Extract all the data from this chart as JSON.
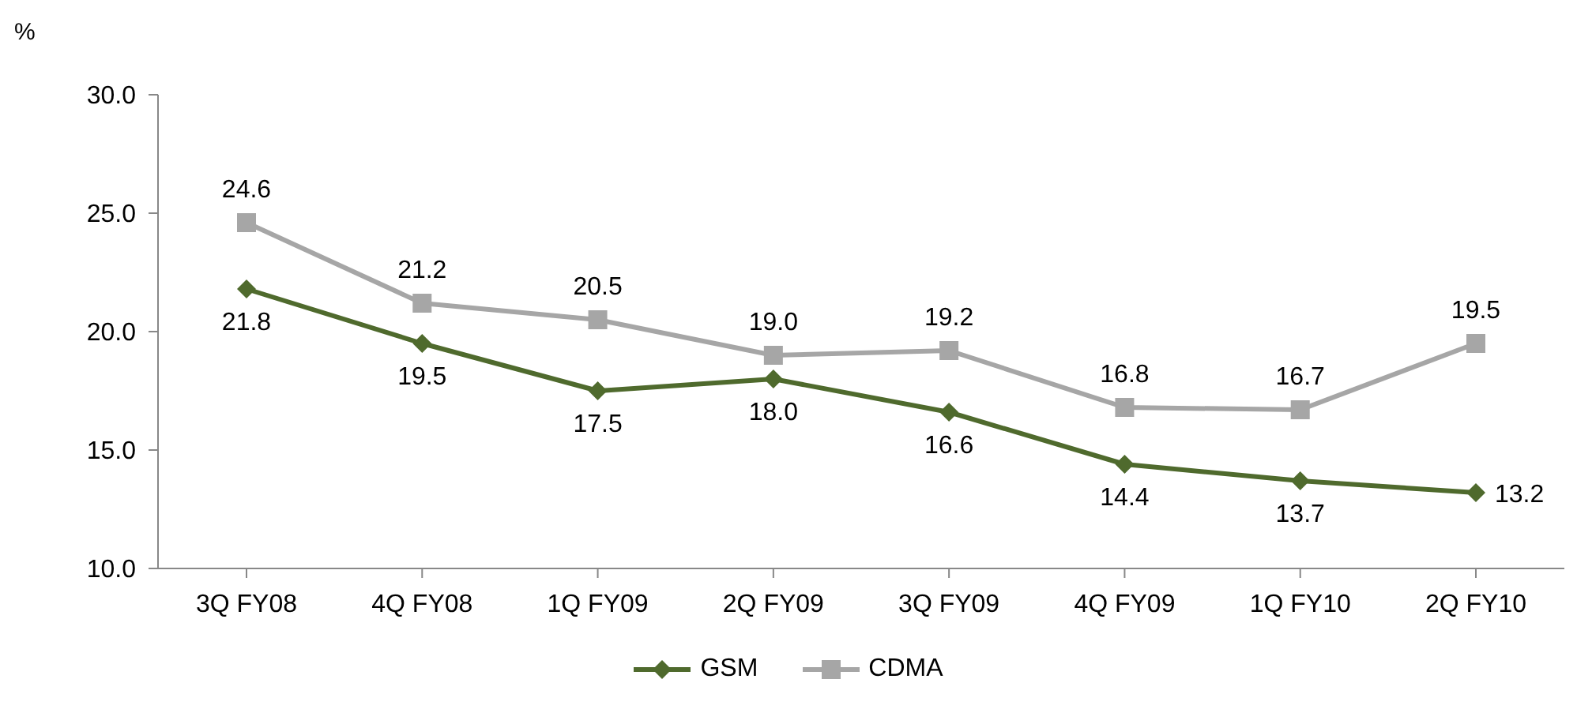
{
  "chart_data": {
    "type": "line",
    "ylabel": "%",
    "categories": [
      "3Q FY08",
      "4Q FY08",
      "1Q FY09",
      "2Q FY09",
      "3Q FY09",
      "4Q FY09",
      "1Q FY10",
      "2Q FY10"
    ],
    "series": [
      {
        "name": "GSM",
        "color": "#4f6a2d",
        "marker": "diamond",
        "values": [
          21.8,
          19.5,
          17.5,
          18.0,
          16.6,
          14.4,
          13.7,
          13.2
        ],
        "value_labels": [
          "21.8",
          "19.5",
          "17.5",
          "18.0",
          "16.6",
          "14.4",
          "13.7",
          "13.2"
        ]
      },
      {
        "name": "CDMA",
        "color": "#a6a6a6",
        "marker": "square",
        "values": [
          24.6,
          21.2,
          20.5,
          19.0,
          19.2,
          16.8,
          16.7,
          19.5
        ],
        "value_labels": [
          "24.6",
          "21.2",
          "20.5",
          "19.0",
          "19.2",
          "16.8",
          "16.7",
          "19.5"
        ]
      }
    ],
    "ylim": [
      10,
      30
    ],
    "yticks": [
      {
        "value": 10,
        "label": "10.0"
      },
      {
        "value": 15,
        "label": "15.0"
      },
      {
        "value": 20,
        "label": "20.0"
      },
      {
        "value": 25,
        "label": "25.0"
      },
      {
        "value": 30,
        "label": "30.0"
      }
    ],
    "grid": false,
    "legend": "bottom",
    "line_style": "solid"
  }
}
